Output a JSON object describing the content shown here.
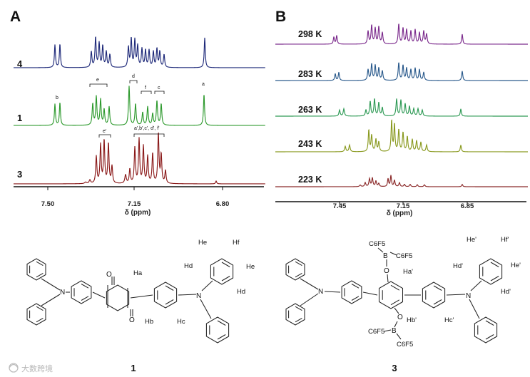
{
  "panels": {
    "a": "A",
    "b": "B"
  },
  "panel_a": {
    "trace_labels": [
      "4",
      "1",
      "3"
    ],
    "x_ticks": [
      "7.50",
      "7.15",
      "6.80"
    ],
    "xlabel": "δ (ppm)",
    "colors": [
      "#1f2a7a",
      "#2e9a2e",
      "#8b1a1a"
    ],
    "annotations": {
      "b": "b",
      "e": "e",
      "d": "d",
      "f": "f",
      "c": "c",
      "a": "a",
      "e_prime": "e'",
      "group_3": "a',b',c', d', f'"
    }
  },
  "panel_b": {
    "temps": [
      "298 K",
      "283 K",
      "263 K",
      "243 K",
      "223 K"
    ],
    "x_ticks": [
      "7.45",
      "7.15",
      "6.85"
    ],
    "xlabel": "δ (ppm)",
    "colors": [
      "#7b2a8c",
      "#2a5a8c",
      "#2e9a55",
      "#8a9a20",
      "#8b2a2a"
    ]
  },
  "structure1": {
    "labels": {
      "o1": "O",
      "o2": "O",
      "n1": "N",
      "n2": "N",
      "ha": "Ha",
      "hb": "Hb",
      "hc": "Hc",
      "hd1": "Hd",
      "hd2": "Hd",
      "he1": "He",
      "he2": "He",
      "hf": "Hf"
    },
    "number": "1"
  },
  "structure3": {
    "labels": {
      "c6f5_1": "C6F5",
      "c6f5_2": "C6F5",
      "c6f5_3": "C6F5",
      "c6f5_4": "C6F5",
      "b1": "B",
      "b2": "B",
      "o1": "O",
      "o2": "O",
      "n1": "N",
      "n2": "N",
      "ha": "Ha'",
      "hb": "Hb'",
      "hc": "Hc'",
      "hd1": "Hd'",
      "hd2": "Hd'",
      "he1": "He'",
      "he2": "He'",
      "hf": "Hf'"
    },
    "number": "3"
  },
  "watermark": "大数跨境",
  "watermark_icon": "logo-icon"
}
